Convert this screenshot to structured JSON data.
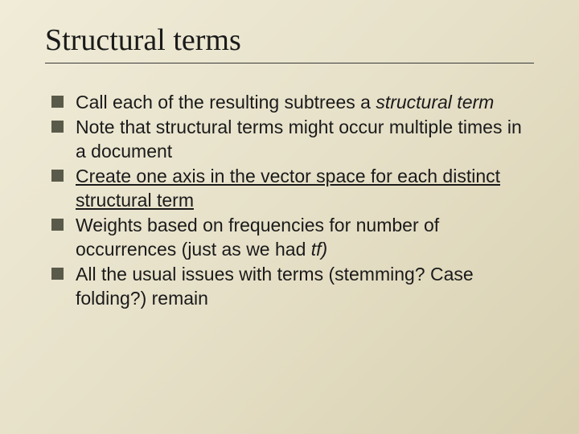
{
  "slide": {
    "title": "Structural terms",
    "background_gradient": [
      "#f0ecd8",
      "#e6e0c8",
      "#d8d0b0"
    ],
    "title_fontsize": 38,
    "title_font": "Times New Roman",
    "body_fontsize": 23,
    "bullet_color": "#5a5a4a",
    "bullet_size": 15,
    "underline_color": "#3a3a3a",
    "bullets": [
      {
        "pre": "Call each of the resulting subtrees a ",
        "em": "structural term",
        "post": ""
      },
      {
        "pre": "Note that structural terms might occur multiple times in a document",
        "em": "",
        "post": ""
      },
      {
        "pre": "",
        "u": "Create one axis in the vector space for each distinct structural term",
        "post": ""
      },
      {
        "pre": "Weights based on frequencies for number of occurrences (just as we had ",
        "em": "tf)",
        "post": ""
      },
      {
        "pre": "All the usual issues with terms (stemming? Case folding?) remain",
        "em": "",
        "post": ""
      }
    ]
  }
}
